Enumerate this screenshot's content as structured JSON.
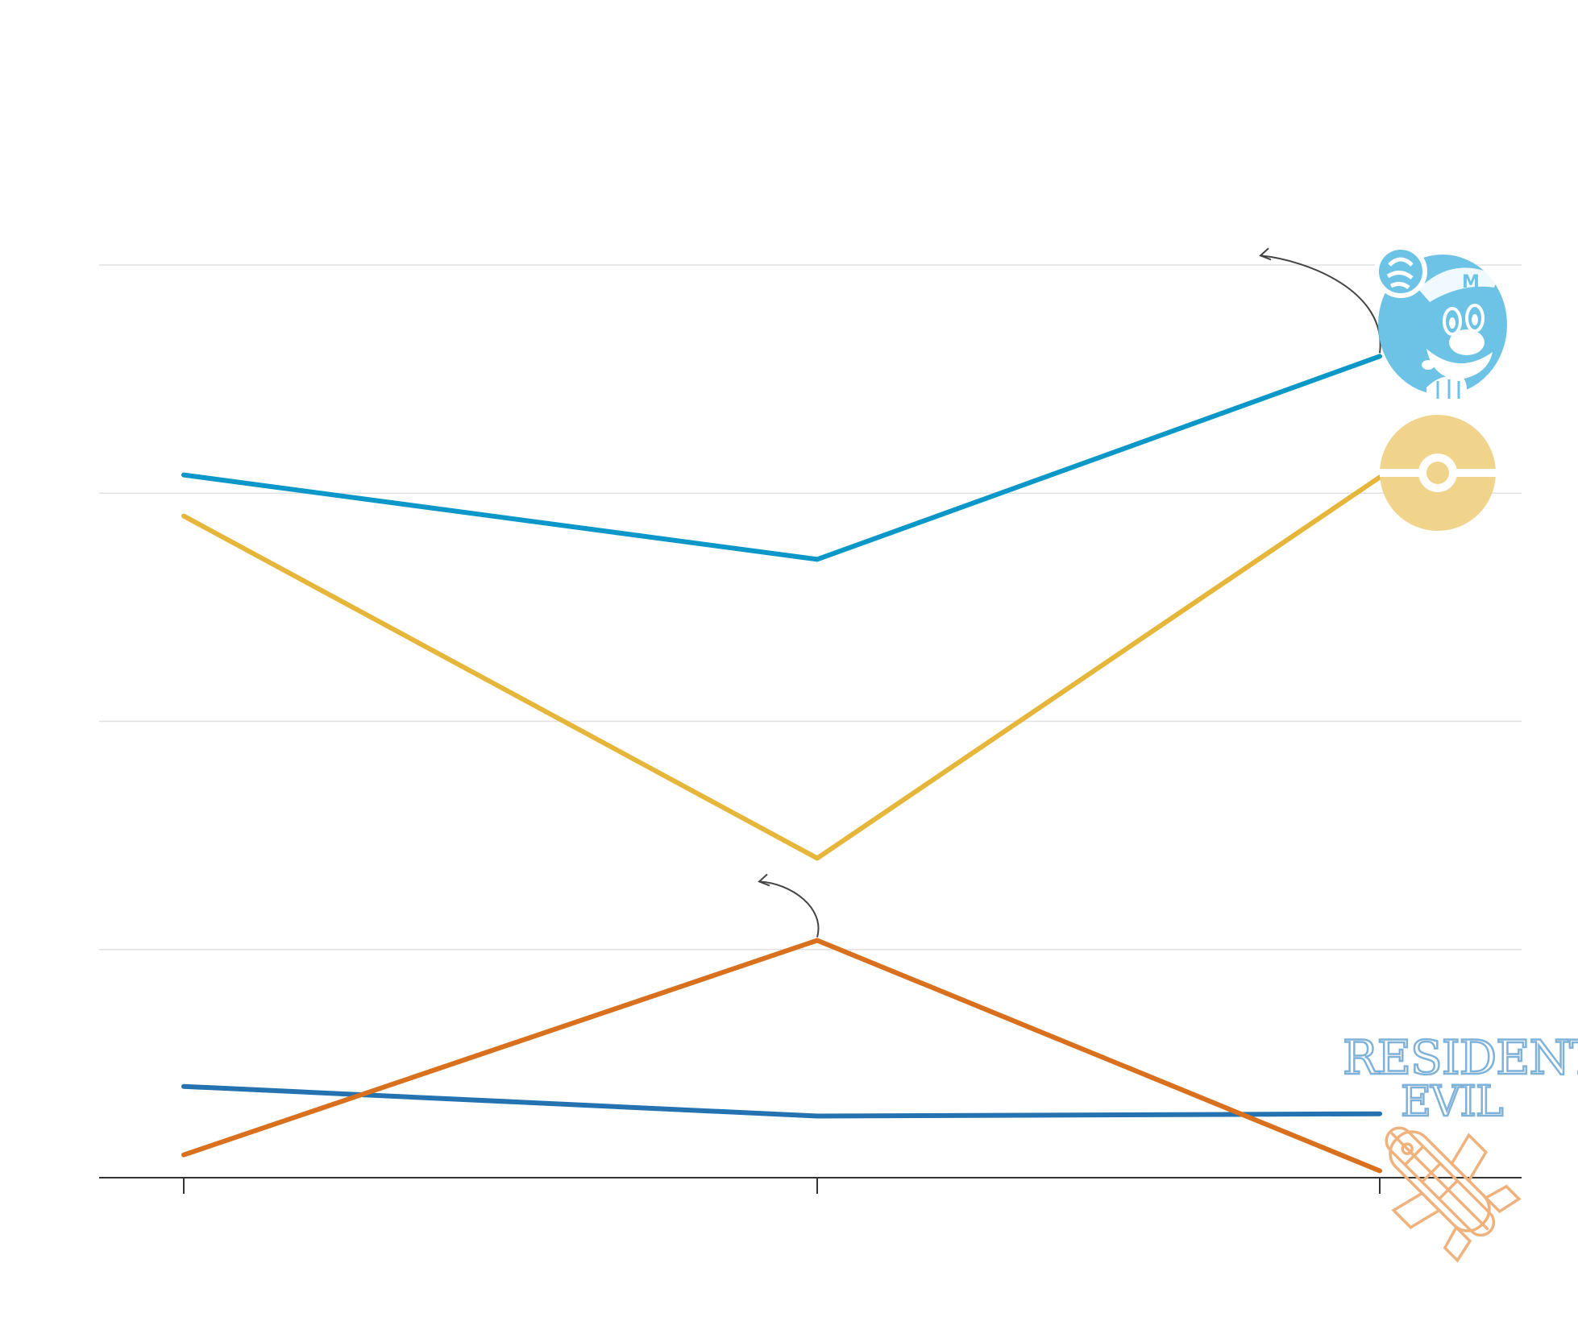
{
  "chart_data": {
    "type": "line",
    "title": "",
    "xlabel": "",
    "ylabel": "",
    "x": [
      0,
      1,
      2
    ],
    "ylim": [
      0,
      4
    ],
    "grid": true,
    "series": [
      {
        "color": "#0b97c7",
        "values": [
          3.08,
          2.71,
          3.6
        ],
        "icon": "mario-logo-icon"
      },
      {
        "color": "#e6b63b",
        "values": [
          2.9,
          1.4,
          3.07
        ],
        "icon": "pokeball-logo-icon"
      },
      {
        "color": "#2473b0",
        "values": [
          0.4,
          0.27,
          0.28
        ],
        "icon": "resident-evil-logo-icon"
      },
      {
        "color": "#d9701d",
        "values": [
          0.1,
          1.04,
          0.03
        ],
        "icon": "final-fantasy-airship-logo-icon"
      }
    ],
    "annotations": [
      {
        "series": 0,
        "point": 2,
        "icon": "curved-arrow-icon"
      },
      {
        "series": 3,
        "point": 1,
        "icon": "curved-arrow-icon"
      }
    ],
    "logos": {
      "resident_evil_line1": "RESIDENT",
      "resident_evil_line2": "EVIL"
    }
  }
}
